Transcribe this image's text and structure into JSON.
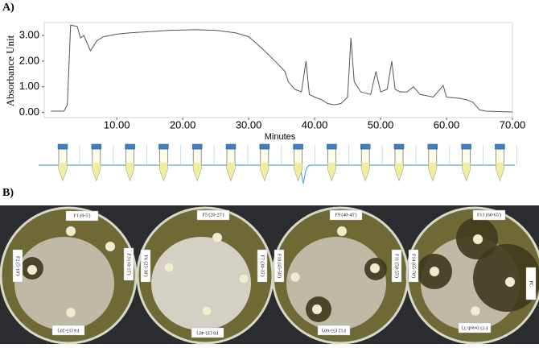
{
  "panels": {
    "a": "A)",
    "b": "B)"
  },
  "chart_data": {
    "type": "line",
    "xlabel": "Minutes",
    "ylabel": "Absorbance Unit",
    "color": "#555555",
    "x": [
      0,
      2,
      2.5,
      3,
      4,
      4.5,
      5,
      5.5,
      6,
      7,
      8,
      10,
      12,
      15,
      18,
      22,
      25,
      28,
      30,
      32,
      34,
      35.5,
      36,
      37,
      38,
      38.7,
      39.2,
      40,
      41,
      42,
      43,
      44,
      45,
      45.5,
      46,
      47,
      48.5,
      49.3,
      50,
      51,
      51.7,
      52.2,
      53,
      54,
      55,
      56,
      58,
      59.5,
      60,
      62,
      63,
      64,
      65,
      66,
      70
    ],
    "values": [
      0.05,
      0.05,
      0.3,
      3.4,
      3.35,
      2.9,
      3.0,
      2.7,
      2.4,
      2.8,
      2.95,
      3.05,
      3.1,
      3.15,
      3.2,
      3.22,
      3.2,
      3.1,
      2.95,
      2.5,
      2.0,
      1.6,
      1.2,
      0.9,
      0.8,
      2.0,
      0.7,
      0.6,
      0.5,
      0.35,
      0.3,
      0.35,
      0.6,
      2.9,
      1.2,
      0.8,
      0.7,
      1.6,
      0.8,
      0.9,
      2.0,
      0.9,
      0.8,
      0.8,
      1.0,
      0.7,
      0.6,
      1.05,
      0.6,
      0.55,
      0.5,
      0.4,
      0.1,
      0.05,
      0.02
    ],
    "xlim": [
      -1,
      70
    ],
    "ylim": [
      -0.2,
      3.5
    ],
    "xticks": [
      {
        "value": 10,
        "label": "10.00"
      },
      {
        "value": 20,
        "label": "20.00"
      },
      {
        "value": 30,
        "label": "30.00"
      },
      {
        "value": 40,
        "label": "40.00"
      },
      {
        "value": 50,
        "label": "50.00"
      },
      {
        "value": 60,
        "label": "60.00"
      },
      {
        "value": 70,
        "label": "70.00"
      }
    ],
    "yticks": [
      {
        "value": 0,
        "label": "0.00"
      },
      {
        "value": 1,
        "label": "1.00"
      },
      {
        "value": 2,
        "label": "2.00"
      },
      {
        "value": 3,
        "label": "3.00"
      }
    ]
  },
  "plates": [
    {
      "labels": [
        "F1 (0-5')",
        "F2 (5-10')",
        "F3 (10-15')",
        "F4 (15-20')"
      ]
    },
    {
      "labels": [
        "F5 (20-25')",
        "F6 (25-30')",
        "F7 (30-35')",
        "F8 (35-40')"
      ]
    },
    {
      "labels": [
        "F9 (40-45')",
        "F10 (45-50')",
        "F11 (50-55')",
        "F12 (55-60')"
      ]
    },
    {
      "labels": [
        "F13 (60-65')",
        "F14 (65-70')",
        "PC",
        "F15 (wash 5')"
      ]
    }
  ]
}
